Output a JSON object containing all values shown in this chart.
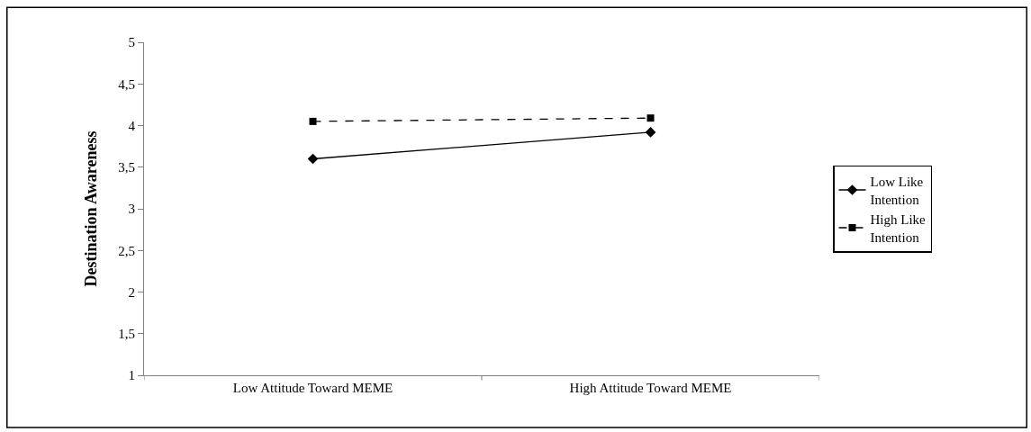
{
  "chart_data": {
    "type": "line",
    "ylabel": "Destination Awareness",
    "categories": [
      "Low Attitude Toward MEME",
      "High Attitude Toward MEME"
    ],
    "series": [
      {
        "name": "Low Like Intention",
        "color": "#000000",
        "values": [
          3.6,
          3.92
        ],
        "marker": "diamond",
        "line_style": "solid"
      },
      {
        "name": "High Like Intention",
        "color": "#000000",
        "values": [
          4.05,
          4.09
        ],
        "marker": "square",
        "line_style": "dashed"
      }
    ],
    "ylim": [
      1,
      5
    ],
    "yticks": [
      1,
      {
        "value": 1.5,
        "label": "1,5"
      },
      2,
      {
        "value": 2.5,
        "label": "2,5"
      },
      3,
      {
        "value": 3.5,
        "label": "3,5"
      },
      4,
      {
        "value": 4.5,
        "label": "4,5"
      },
      5
    ],
    "legend": "right"
  }
}
